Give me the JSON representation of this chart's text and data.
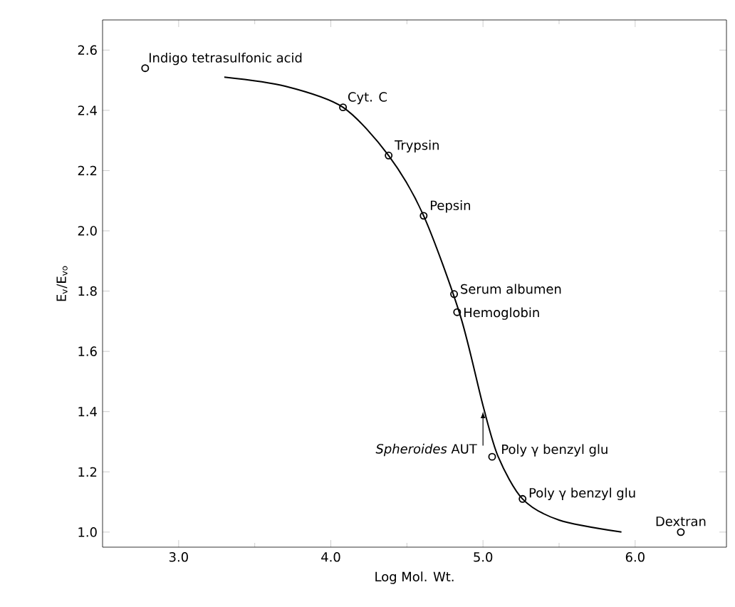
{
  "chart_data": {
    "type": "scatter",
    "xlabel": "Log Mol. Wt.",
    "ylabel": "E$_{v}$/E$_{vo}$",
    "xlim": [
      2.5,
      6.6
    ],
    "ylim": [
      0.95,
      2.7
    ],
    "xticks": [
      {
        "value": 3.0,
        "label": "3.0"
      },
      {
        "value": 4.0,
        "label": "4.0"
      },
      {
        "value": 5.0,
        "label": "5.0"
      },
      {
        "value": 6.0,
        "label": "6.0"
      }
    ],
    "yticks": [
      {
        "value": 1.0,
        "label": "1.0"
      },
      {
        "value": 1.2,
        "label": "1.2"
      },
      {
        "value": 1.4,
        "label": "1.4"
      },
      {
        "value": 1.6,
        "label": "1.6"
      },
      {
        "value": 1.8,
        "label": "1.8"
      },
      {
        "value": 2.0,
        "label": "2.0"
      },
      {
        "value": 2.2,
        "label": "2.2"
      },
      {
        "value": 2.4,
        "label": "2.4"
      },
      {
        "value": 2.6,
        "label": "2.6"
      }
    ],
    "grid": false,
    "series": [
      {
        "color": "#000000",
        "marker": "circle",
        "x": [
          2.78,
          4.08,
          4.38,
          4.61,
          4.81,
          4.83,
          5.06,
          5.26,
          6.3
        ],
        "values": [
          2.54,
          2.41,
          2.25,
          2.05,
          1.79,
          1.73,
          1.25,
          1.11,
          1.0
        ]
      },
      {
        "type": "line",
        "color": "#000000",
        "marker": "none",
        "line_style": "solid",
        "x": [
          3.3,
          3.7,
          4.08,
          4.38,
          4.61,
          4.85,
          5.0,
          5.1,
          5.26,
          5.5,
          5.91
        ],
        "values": [
          2.51,
          2.48,
          2.41,
          2.25,
          2.05,
          1.72,
          1.42,
          1.25,
          1.11,
          1.04,
          1.0
        ]
      }
    ],
    "annotations": [
      {
        "text": "Indigo tetrasulfonic acid",
        "x": 2.78,
        "y": 2.54
      },
      {
        "text": "Cyt. C",
        "x": 4.08,
        "y": 2.41
      },
      {
        "text": "Trypsin",
        "x": 4.38,
        "y": 2.25
      },
      {
        "text": "Pepsin",
        "x": 4.61,
        "y": 2.05
      },
      {
        "text": "Serum albumen",
        "x": 4.81,
        "y": 1.79
      },
      {
        "text": "Hemoglobin",
        "x": 4.83,
        "y": 1.73
      },
      {
        "text": "Poly γ benzyl glu",
        "x": 5.06,
        "y": 1.25
      },
      {
        "text": "Poly γ benzyl glu",
        "x": 5.26,
        "y": 1.11
      },
      {
        "text": "Dextran",
        "x": 6.3,
        "y": 1.0
      },
      {
        "text": "*Spheroides* AUT",
        "x": 5.0,
        "y": 1.4
      }
    ]
  }
}
